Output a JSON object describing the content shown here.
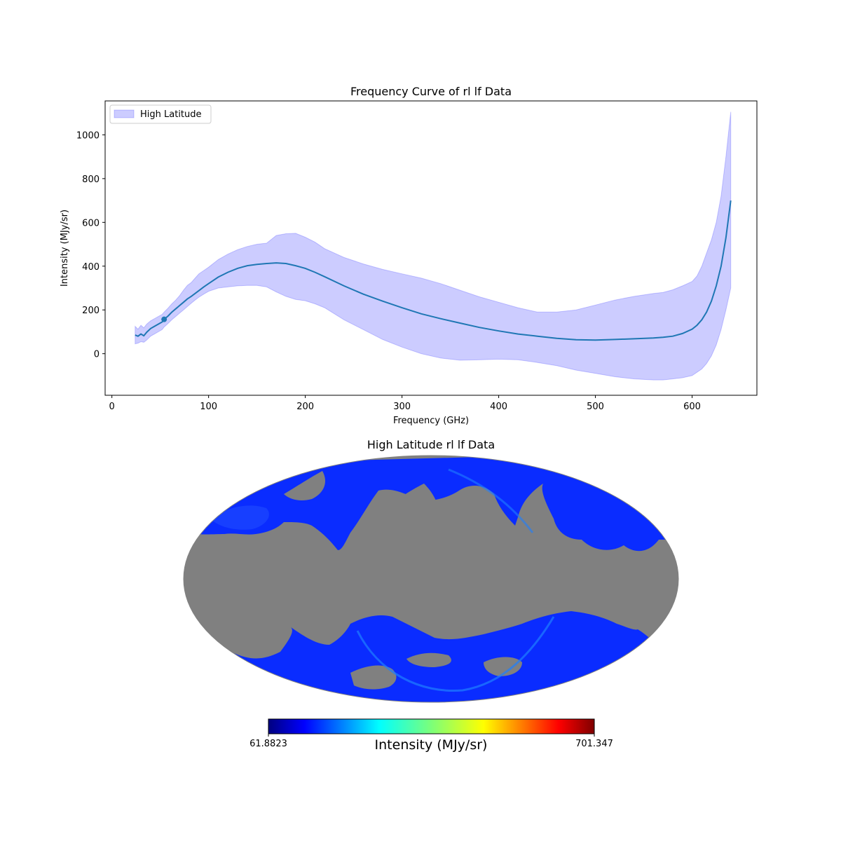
{
  "chart_data": [
    {
      "type": "line",
      "title": "Frequency Curve of rl lf Data",
      "xlabel": "Frequency (GHz)",
      "ylabel": "Intensity (MJy/sr)",
      "xlim": [
        -7,
        667
      ],
      "ylim": [
        -190,
        1155
      ],
      "xticks": [
        0,
        100,
        200,
        300,
        400,
        500,
        600
      ],
      "yticks": [
        0,
        200,
        400,
        600,
        800,
        1000
      ],
      "grid": false,
      "legend": {
        "position": "top-left",
        "entries": [
          "High Latitude"
        ]
      },
      "colors": {
        "line": "#1f77b4",
        "band_fill": "#0000ff",
        "band_opacity": 0.2
      },
      "series": [
        {
          "name": "High Latitude",
          "x": [
            24,
            27,
            30,
            33,
            36,
            40,
            44,
            48,
            52,
            54,
            58,
            62,
            66,
            70,
            74,
            78,
            82,
            86,
            90,
            95,
            100,
            110,
            120,
            130,
            140,
            150,
            160,
            170,
            180,
            190,
            200,
            210,
            220,
            240,
            260,
            280,
            300,
            320,
            340,
            360,
            380,
            400,
            420,
            440,
            460,
            480,
            500,
            520,
            540,
            560,
            570,
            580,
            590,
            600,
            605,
            610,
            615,
            620,
            625,
            630,
            635,
            640
          ],
          "mean": [
            85,
            80,
            90,
            82,
            98,
            115,
            125,
            135,
            145,
            157,
            172,
            190,
            205,
            220,
            235,
            250,
            262,
            275,
            288,
            305,
            320,
            350,
            372,
            390,
            402,
            408,
            412,
            415,
            412,
            402,
            390,
            372,
            352,
            310,
            272,
            240,
            210,
            182,
            160,
            140,
            120,
            104,
            90,
            80,
            70,
            64,
            62,
            65,
            68,
            72,
            75,
            80,
            92,
            112,
            130,
            155,
            190,
            240,
            310,
            400,
            530,
            700
          ],
          "upper": [
            125,
            112,
            130,
            118,
            135,
            150,
            160,
            170,
            180,
            190,
            208,
            228,
            245,
            265,
            290,
            312,
            325,
            345,
            365,
            380,
            395,
            430,
            455,
            475,
            490,
            500,
            505,
            540,
            548,
            550,
            532,
            510,
            480,
            440,
            410,
            385,
            365,
            345,
            320,
            290,
            260,
            235,
            210,
            190,
            190,
            200,
            222,
            245,
            262,
            275,
            280,
            292,
            310,
            330,
            355,
            400,
            460,
            520,
            600,
            720,
            900,
            1105
          ],
          "lower": [
            45,
            48,
            55,
            52,
            62,
            80,
            90,
            100,
            110,
            122,
            138,
            155,
            170,
            185,
            200,
            215,
            230,
            245,
            258,
            272,
            285,
            300,
            305,
            310,
            312,
            312,
            305,
            282,
            262,
            248,
            242,
            228,
            210,
            155,
            110,
            65,
            30,
            0,
            -20,
            -30,
            -28,
            -25,
            -28,
            -40,
            -55,
            -75,
            -90,
            -105,
            -115,
            -120,
            -120,
            -115,
            -110,
            -100,
            -85,
            -70,
            -45,
            -10,
            40,
            110,
            200,
            300
          ]
        }
      ],
      "marker": {
        "x": 54,
        "y": 157
      }
    },
    {
      "type": "heatmap",
      "projection": "mollweide",
      "title": "High Latitude rl lf Data",
      "mask_color": "#808080",
      "colormap": "jet",
      "colorbar": {
        "label": "Intensity (MJy/sr)",
        "min_label": "61.8823",
        "max_label": "701.347",
        "min": 61.8823,
        "max": 701.347
      }
    }
  ]
}
